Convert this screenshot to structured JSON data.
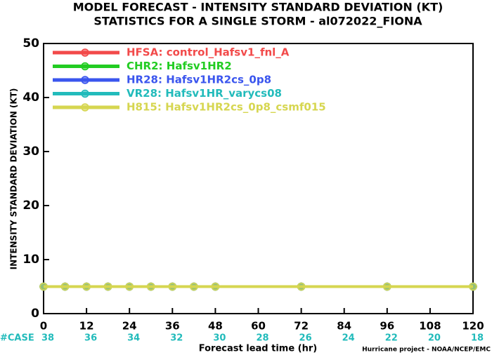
{
  "chart_data": {
    "type": "line",
    "title": "MODEL FORECAST - INTENSITY STANDARD DEVIATION (KT)",
    "subtitle": "STATISTICS FOR A SINGLE STORM - al072022_FIONA",
    "x_label": "Forecast lead time (hr)",
    "y_label": "INTENSITY STANDARD DEVIATION (KT)",
    "x": [
      0,
      6,
      12,
      18,
      24,
      30,
      36,
      42,
      48,
      72,
      96,
      120
    ],
    "series": [
      {
        "name": "HFSA: control_Hafsv1_fnl_A",
        "color": "#f24a4a",
        "values": [
          5,
          5,
          5,
          5,
          5,
          5,
          5,
          5,
          5,
          5,
          5,
          5
        ]
      },
      {
        "name": "CHR2: Hafsv1HR2",
        "color": "#22cc22",
        "values": [
          5,
          5,
          5,
          5,
          5,
          5,
          5,
          5,
          5,
          5,
          5,
          5
        ]
      },
      {
        "name": "HR28: Hafsv1HR2cs_0p8",
        "color": "#3a55ee",
        "values": [
          5,
          5,
          5,
          5,
          5,
          5,
          5,
          5,
          5,
          5,
          5,
          5
        ]
      },
      {
        "name": "VR28: Hafsv1HR_varycs08",
        "color": "#22bbbb",
        "values": [
          5,
          5,
          5,
          5,
          5,
          5,
          5,
          5,
          5,
          5,
          5,
          5
        ]
      },
      {
        "name": "H815: Hafsv1HR2cs_0p8_csmf015",
        "color": "#d6d650",
        "values": [
          5,
          5,
          5,
          5,
          5,
          5,
          5,
          5,
          5,
          5,
          5,
          5
        ]
      }
    ],
    "xlim": [
      0,
      120
    ],
    "xticks": [
      0,
      12,
      24,
      36,
      48,
      60,
      72,
      84,
      96,
      108,
      120
    ],
    "ylim": [
      0,
      50
    ],
    "yticks": [
      0,
      10,
      20,
      30,
      40,
      50
    ],
    "case_label": "#CASE",
    "case_counts": [
      38,
      36,
      34,
      32,
      30,
      28,
      26,
      24,
      22,
      20,
      18
    ],
    "case_color": "#22bbbb",
    "footer": "Hurricane project - NOAA/NCEP/EMC"
  }
}
